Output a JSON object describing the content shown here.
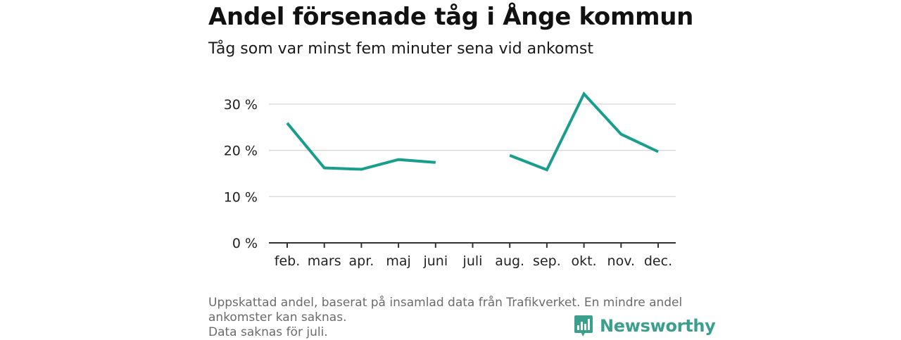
{
  "header": {
    "title": "Andel försenade tåg i Ånge kommun",
    "subtitle": "Tåg som var minst fem minuter sena vid ankomst"
  },
  "chart_data": {
    "type": "line",
    "title": "Andel försenade tåg i Ånge kommun",
    "subtitle": "Tåg som var minst fem minuter sena vid ankomst",
    "categories": [
      "feb.",
      "mars",
      "apr.",
      "maj",
      "juni",
      "juli",
      "aug.",
      "sep.",
      "okt.",
      "nov.",
      "dec."
    ],
    "series": [
      {
        "values": [
          25.9,
          16.2,
          15.9,
          18.0,
          17.4,
          null,
          18.9,
          15.8,
          32.2,
          23.5,
          19.7
        ]
      }
    ],
    "y_ticks": [
      "0 %",
      "10 %",
      "20 %",
      "30 %"
    ],
    "ylim": [
      0,
      35
    ],
    "grid": true,
    "line_color": "#199e8e"
  },
  "footer": {
    "note_lines": [
      "Uppskattad andel, baserat på insamlad data från Trafikverket. En mindre andel",
      "ankomster kan saknas.",
      "Data saknas för juli."
    ],
    "brand": "Newsworthy",
    "brand_color": "#3a9f8d"
  }
}
